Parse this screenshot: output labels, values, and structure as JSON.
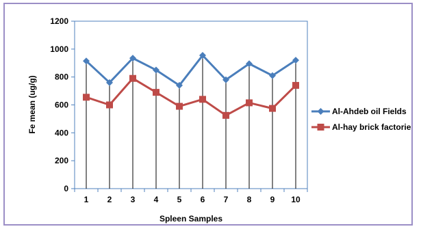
{
  "chart_data": {
    "type": "line",
    "title": "",
    "xlabel": "Spleen Samples",
    "ylabel": "Fe mean (ug/g)",
    "categories": [
      "1",
      "2",
      "3",
      "4",
      "5",
      "6",
      "7",
      "8",
      "9",
      "10"
    ],
    "y_ticks": [
      "0",
      "200",
      "400",
      "600",
      "800",
      "1000",
      "1200"
    ],
    "ylim": [
      0,
      1200
    ],
    "grid": false,
    "drop_lines": true,
    "legend_position": "right",
    "series": [
      {
        "name": "Al-Ahdeb oil Fields",
        "color": "#4a7ebb",
        "marker": "diamond",
        "values": [
          915,
          760,
          935,
          850,
          740,
          955,
          780,
          895,
          810,
          920
        ]
      },
      {
        "name": "Al-hay brick factories",
        "color": "#be4b48",
        "marker": "square",
        "values": [
          655,
          600,
          790,
          690,
          590,
          640,
          525,
          615,
          575,
          740
        ]
      }
    ]
  }
}
